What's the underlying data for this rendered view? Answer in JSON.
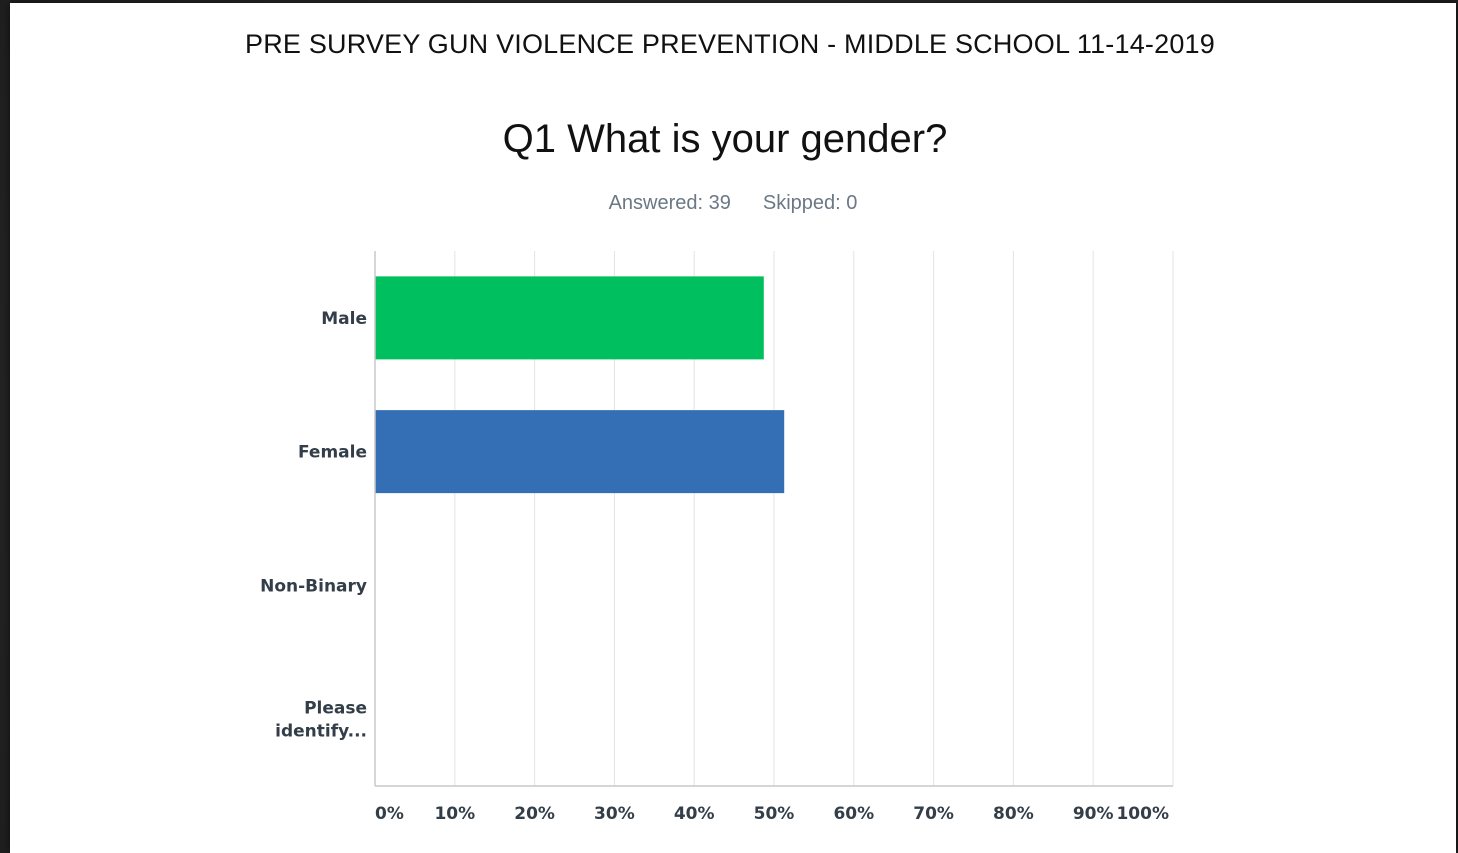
{
  "header": {
    "title": "PRE SURVEY GUN VIOLENCE PREVENTION - MIDDLE SCHOOL 11-14-2019"
  },
  "question": {
    "title": "Q1 What is your gender?",
    "answered": "Answered: 39",
    "skipped": "Skipped: 0"
  },
  "chart_data": {
    "type": "bar",
    "orientation": "horizontal",
    "categories": [
      [
        "Male"
      ],
      [
        "Female"
      ],
      [
        "Non-Binary"
      ],
      [
        "Please",
        "identify..."
      ]
    ],
    "values": [
      48.72,
      51.28,
      0,
      0
    ],
    "colors": [
      "#00bf5f",
      "#346fb5",
      "#00bf5f",
      "#00bf5f"
    ],
    "xlim": [
      0,
      100
    ],
    "ticks": [
      0,
      10,
      20,
      30,
      40,
      50,
      60,
      70,
      80,
      90,
      100
    ],
    "tick_labels": [
      "0%",
      "10%",
      "20%",
      "30%",
      "40%",
      "50%",
      "60%",
      "70%",
      "80%",
      "90%",
      "100%"
    ],
    "grid": true,
    "title": "",
    "xlabel": "",
    "ylabel": ""
  }
}
